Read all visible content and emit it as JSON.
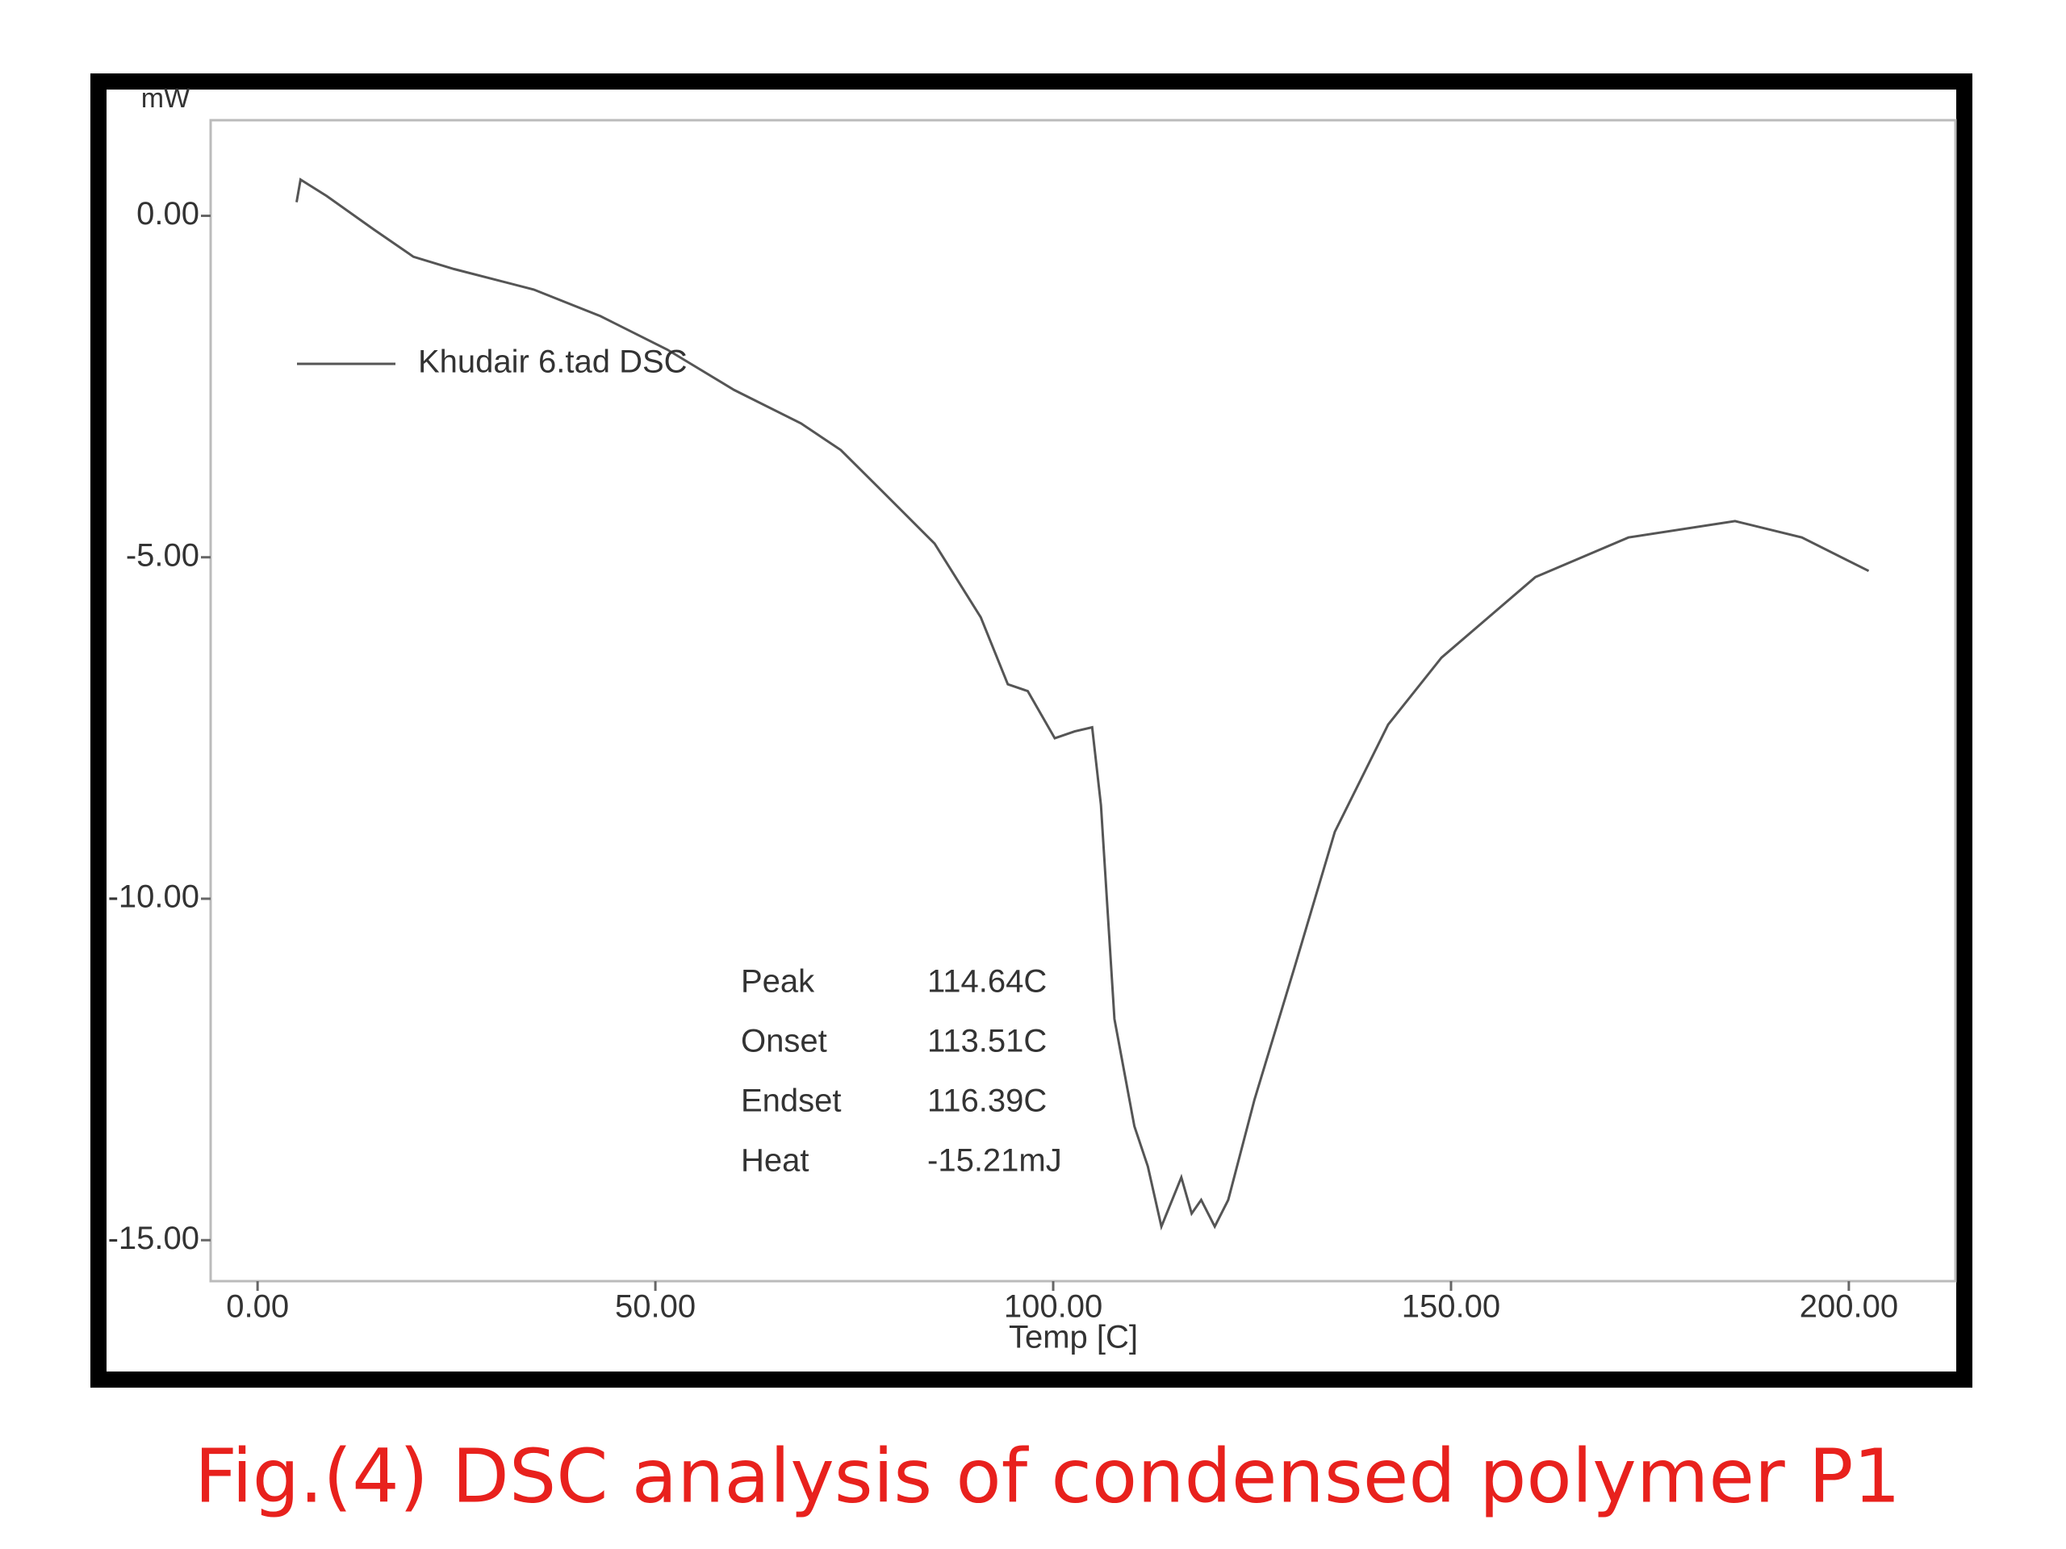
{
  "chart_data": {
    "type": "line",
    "caption": "Fig.(4) DSC analysis of  condensed polymer P1",
    "ylabel": "mW",
    "xlabel": "Temp  [C]",
    "series": [
      {
        "name": "Khudair 6.tad  DSC",
        "color": "#555555",
        "x": [
          4.9,
          5.4,
          8.7,
          14.6,
          19.6,
          24.7,
          34.7,
          43.1,
          51.5,
          59.9,
          68.3,
          73.3,
          78.4,
          85.1,
          90.9,
          94.3,
          96.8,
          100.2,
          102.7,
          104.9,
          106,
          107.7,
          110.2,
          111.9,
          113.6,
          116.1,
          117.4,
          118.6,
          120.3,
          122,
          125.3,
          130.4,
          135.4,
          142.1,
          148.8,
          160.6,
          172.3,
          185.7,
          194.1,
          202.5
        ],
        "values": [
          0.2,
          0.53,
          0.29,
          -0.2,
          -0.6,
          -0.78,
          -1.08,
          -1.47,
          -1.96,
          -2.55,
          -3.04,
          -3.43,
          -4.02,
          -4.8,
          -5.88,
          -6.86,
          -6.96,
          -7.65,
          -7.55,
          -7.49,
          -8.63,
          -11.76,
          -13.33,
          -13.92,
          -14.8,
          -14.08,
          -14.61,
          -14.41,
          -14.8,
          -14.41,
          -12.94,
          -10.98,
          -9.02,
          -7.45,
          -6.47,
          -5.29,
          -4.71,
          -4.47,
          -4.71,
          -5.2
        ]
      }
    ],
    "xlim": [
      -5.9,
      213.4
    ],
    "ylim": [
      -15.6,
      1.4
    ],
    "xticks": [
      {
        "value": 0,
        "label": "0.00"
      },
      {
        "value": 50,
        "label": "50.00"
      },
      {
        "value": 100,
        "label": "100.00"
      },
      {
        "value": 150,
        "label": "150.00"
      },
      {
        "value": 200,
        "label": "200.00"
      }
    ],
    "yticks": [
      {
        "value": 0,
        "label": "0.00"
      },
      {
        "value": -5,
        "label": "-5.00"
      },
      {
        "value": -10,
        "label": "-10.00"
      },
      {
        "value": -15,
        "label": "-15.00"
      }
    ],
    "annotations": [
      {
        "label": "Peak",
        "value": "114.64C"
      },
      {
        "label": "Onset",
        "value": "113.51C"
      },
      {
        "label": "Endset",
        "value": "116.39C"
      },
      {
        "label": "Heat",
        "value": "-15.21mJ"
      }
    ]
  }
}
